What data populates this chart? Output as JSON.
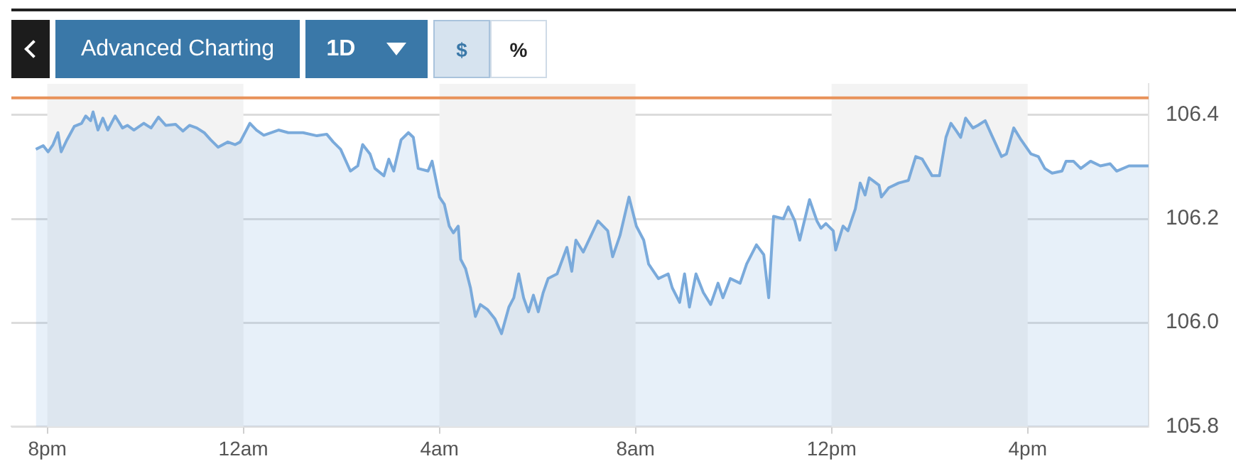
{
  "chart_data": {
    "type": "area",
    "annotations": [
      "Advanced Charting",
      "1D",
      "$",
      "%"
    ],
    "x": [
      "--01-01T19:46",
      "--01-01T19:55",
      "--01-01T20:01",
      "--01-01T20:07",
      "--01-01T20:13",
      "--01-01T20:17",
      "--01-01T20:24",
      "--01-01T20:33",
      "--01-01T20:42",
      "--01-01T20:47",
      "--01-01T20:53",
      "--01-01T20:56",
      "--01-01T21:02",
      "--01-01T21:08",
      "--01-01T21:14",
      "--01-01T21:23",
      "--01-01T21:32",
      "--01-01T21:38",
      "--01-01T21:46",
      "--01-01T21:58",
      "--01-01T22:07",
      "--01-01T22:16",
      "--01-01T22:25",
      "--01-01T22:37",
      "--01-01T22:46",
      "--01-01T22:54",
      "--01-01T23:03",
      "--01-01T23:12",
      "--01-01T23:20",
      "--01-01T23:29",
      "--01-01T23:41",
      "--01-01T23:50",
      "--01-01T23:56",
      "--01-02T00:08",
      "--01-02T00:16",
      "--01-02T00:25",
      "--01-02T00:43",
      "--01-02T00:55",
      "--01-02T01:13",
      "--01-02T01:30",
      "--01-02T01:42",
      "--01-02T01:50",
      "--01-02T01:59",
      "--01-02T02:11",
      "--01-02T02:20",
      "--01-02T02:26",
      "--01-02T02:35",
      "--01-02T02:41",
      "--01-02T02:52",
      "--01-02T02:58",
      "--01-02T03:04",
      "--01-02T03:13",
      "--01-02T03:22",
      "--01-02T03:28",
      "--01-02T03:34",
      "--01-02T03:46",
      "--01-02T03:51",
      "--01-02T03:54",
      "--01-02T04:00",
      "--01-02T04:06",
      "--01-02T04:12",
      "--01-02T04:17",
      "--01-02T04:23",
      "--01-02T04:26",
      "--01-02T04:32",
      "--01-02T04:38",
      "--01-02T04:44",
      "--01-02T04:50",
      "--01-02T04:59",
      "--01-02T05:08",
      "--01-02T05:16",
      "--01-02T05:25",
      "--01-02T05:31",
      "--01-02T05:37",
      "--01-02T05:43",
      "--01-02T05:49",
      "--01-02T05:55",
      "--01-02T06:01",
      "--01-02T06:07",
      "--01-02T06:13",
      "--01-02T06:24",
      "--01-02T06:36",
      "--01-02T06:42",
      "--01-02T06:47",
      "--01-02T06:56",
      "--01-02T07:14",
      "--01-02T07:26",
      "--01-02T07:32",
      "--01-02T07:41",
      "--01-02T07:52",
      "--01-02T08:01",
      "--01-02T08:10",
      "--01-02T08:16",
      "--01-02T08:28",
      "--01-02T08:40",
      "--01-02T08:45",
      "--01-02T08:54",
      "--01-02T09:00",
      "--01-02T09:06",
      "--01-02T09:14",
      "--01-02T09:23",
      "--01-02T09:32",
      "--01-02T09:41",
      "--01-02T09:47",
      "--01-02T09:56",
      "--01-02T10:08",
      "--01-02T10:16",
      "--01-02T10:28",
      "--01-02T10:37",
      "--01-02T10:43",
      "--01-02T10:49",
      "--01-02T11:01",
      "--01-02T11:07",
      "--01-02T11:15",
      "--01-02T11:21",
      "--01-02T11:33",
      "--01-02T11:42",
      "--01-02T11:47",
      "--01-02T11:53",
      "--01-02T12:02",
      "--01-02T12:05",
      "--01-02T12:14",
      "--01-02T12:20",
      "--01-02T12:29",
      "--01-02T12:35",
      "--01-02T12:41",
      "--01-02T12:46",
      "--01-02T12:58",
      "--01-02T13:01",
      "--01-02T13:10",
      "--01-02T13:22",
      "--01-02T13:34",
      "--01-02T13:43",
      "--01-02T13:51",
      "--01-02T14:03",
      "--01-02T14:12",
      "--01-02T14:20",
      "--01-02T14:26",
      "--01-02T14:32",
      "--01-02T14:38",
      "--01-02T14:44",
      "--01-02T14:53",
      "--01-02T14:59",
      "--01-02T15:08",
      "--01-02T15:16",
      "--01-02T15:28",
      "--01-02T15:34",
      "--01-02T15:43",
      "--01-02T15:52",
      "--01-02T16:04",
      "--01-02T16:13",
      "--01-02T16:21",
      "--01-02T16:30",
      "--01-02T16:42",
      "--01-02T16:47",
      "--01-02T16:56",
      "--01-02T17:05",
      "--01-02T17:17",
      "--01-02T17:29",
      "--01-02T17:41",
      "--01-02T17:49",
      "--01-02T18:04",
      "--01-02T18:28"
    ],
    "values": [
      106.334,
      106.341,
      106.329,
      106.343,
      106.366,
      106.329,
      106.352,
      106.378,
      106.384,
      106.398,
      106.389,
      106.406,
      106.371,
      106.394,
      106.371,
      106.398,
      106.375,
      106.38,
      106.371,
      106.384,
      106.375,
      106.396,
      106.38,
      106.382,
      106.369,
      106.38,
      106.375,
      106.366,
      106.352,
      106.338,
      106.348,
      106.343,
      106.348,
      106.384,
      106.371,
      106.361,
      106.371,
      106.366,
      106.366,
      106.36,
      106.363,
      106.348,
      106.334,
      106.292,
      106.302,
      106.343,
      106.325,
      106.297,
      106.283,
      106.315,
      106.292,
      106.352,
      106.366,
      106.357,
      106.297,
      106.292,
      106.311,
      106.288,
      106.242,
      106.228,
      106.186,
      106.173,
      106.186,
      106.122,
      106.104,
      106.067,
      106.012,
      106.035,
      106.025,
      106.007,
      105.979,
      106.03,
      106.048,
      106.094,
      106.048,
      106.021,
      106.053,
      106.021,
      106.058,
      106.085,
      106.094,
      106.145,
      106.099,
      106.159,
      106.136,
      106.196,
      106.177,
      106.127,
      106.168,
      106.242,
      106.186,
      106.159,
      106.113,
      106.085,
      106.094,
      106.067,
      106.039,
      106.094,
      106.03,
      106.094,
      106.058,
      106.035,
      106.076,
      106.048,
      106.085,
      106.076,
      106.113,
      106.15,
      106.131,
      106.048,
      106.205,
      106.2,
      106.223,
      106.196,
      106.159,
      106.237,
      106.196,
      106.182,
      106.191,
      106.177,
      106.14,
      106.186,
      106.177,
      106.219,
      106.269,
      106.246,
      106.279,
      106.265,
      106.242,
      106.26,
      106.269,
      106.274,
      106.32,
      106.315,
      106.283,
      106.283,
      106.357,
      106.384,
      106.371,
      106.357,
      106.394,
      106.375,
      106.38,
      106.389,
      106.361,
      106.32,
      106.325,
      106.375,
      106.352,
      106.325,
      106.32,
      106.297,
      106.288,
      106.292,
      106.311,
      106.311,
      106.297,
      106.311,
      106.302,
      106.306,
      106.292,
      106.302,
      106.302
    ],
    "color": "#7aaadb",
    "xlim": [
      "--01-01T19:16",
      "--01-02T18:28"
    ],
    "xticks": [
      {
        "value": "--01-01T20:00",
        "label": "8pm"
      },
      {
        "value": "--01-02T00:00",
        "label": "12am"
      },
      {
        "value": "--01-02T04:00",
        "label": "4am"
      },
      {
        "value": "--01-02T08:00",
        "label": "8am"
      },
      {
        "value": "--01-02T12:00",
        "label": "12pm"
      },
      {
        "value": "--01-02T16:00",
        "label": "4pm"
      }
    ],
    "ylim": [
      105.8,
      106.46
    ],
    "yticks": [
      {
        "value": 105.8,
        "label": "105.8"
      },
      {
        "value": 106.0,
        "label": "106.0"
      },
      {
        "value": 106.2,
        "label": "106.2"
      },
      {
        "value": 106.4,
        "label": "106.4"
      }
    ],
    "grid": "y",
    "ref_lines": [
      {
        "axis": "y",
        "value": 106.433,
        "color": "#e8925a"
      }
    ],
    "bands": [
      {
        "axis": "x",
        "from": "--01-01T20:00",
        "to": "--01-02T00:00",
        "color": "#f3f3f3"
      },
      {
        "axis": "x",
        "from": "--01-02T04:00",
        "to": "--01-02T08:00",
        "color": "#f3f3f3"
      },
      {
        "axis": "x",
        "from": "--01-02T12:00",
        "to": "--01-02T16:00",
        "color": "#f3f3f3"
      }
    ]
  }
}
